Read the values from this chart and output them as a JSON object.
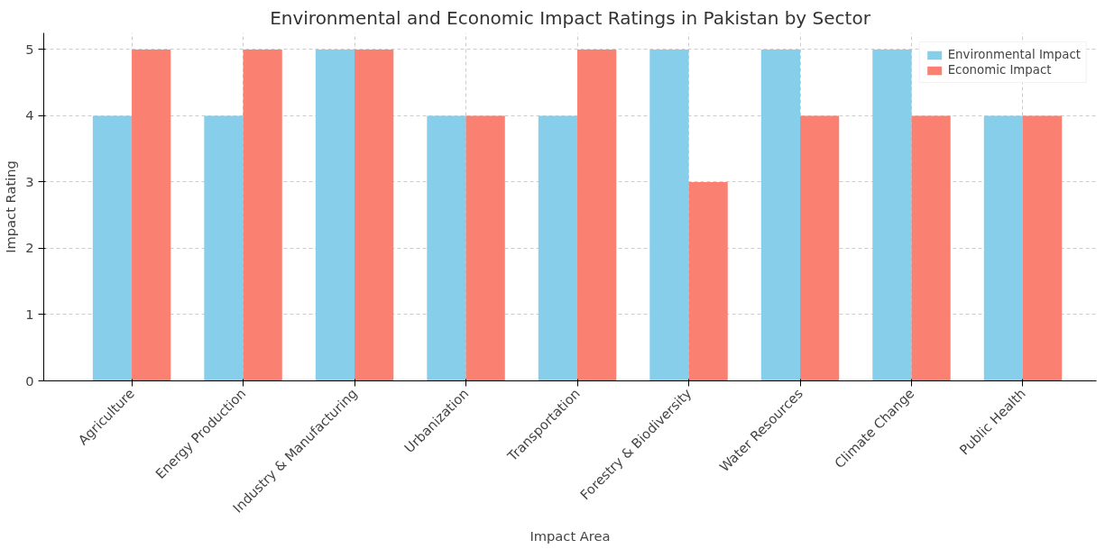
{
  "chart_data": {
    "type": "bar",
    "title": "Environmental and Economic Impact Ratings in Pakistan by Sector",
    "xlabel": "Impact Area",
    "ylabel": "Impact Rating",
    "categories": [
      "Agriculture",
      "Energy Production",
      "Industry & Manufacturing",
      "Urbanization",
      "Transportation",
      "Forestry & Biodiversity",
      "Water Resources",
      "Climate Change",
      "Public Health"
    ],
    "series": [
      {
        "name": "Environmental Impact",
        "color": "#87ceeb",
        "values": [
          4,
          4,
          5,
          4,
          4,
          5,
          5,
          5,
          4
        ]
      },
      {
        "name": "Economic Impact",
        "color": "#fa8072",
        "values": [
          5,
          5,
          5,
          4,
          5,
          3,
          4,
          4,
          4
        ]
      }
    ],
    "ylim": [
      0,
      5.25
    ],
    "yticks": [
      0,
      1,
      2,
      3,
      4,
      5
    ],
    "grid": true,
    "legend": "top right"
  }
}
